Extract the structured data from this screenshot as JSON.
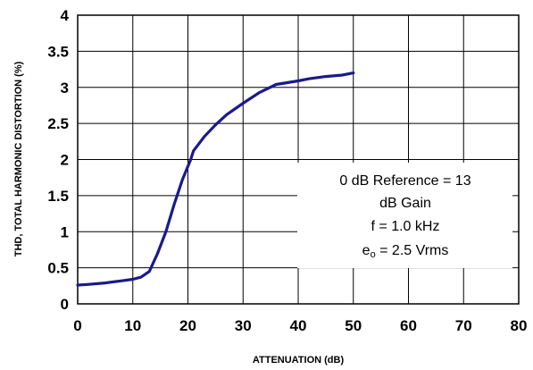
{
  "chart_data": {
    "type": "line",
    "xlabel": "ATTENUATION (dB)",
    "ylabel": "THD, TOTAL HARMONIC DISTORTION (%)",
    "xlim": [
      0,
      80
    ],
    "ylim": [
      0,
      4
    ],
    "x_ticks": [
      "0",
      "10",
      "20",
      "30",
      "40",
      "50",
      "60",
      "70",
      "80"
    ],
    "y_ticks": [
      "0",
      "0.5",
      "1",
      "1.5",
      "2",
      "2.5",
      "3",
      "3.5",
      "4"
    ],
    "grid": true,
    "line_color": "#1a1a8c",
    "series": [
      {
        "x": [
          0,
          2,
          5,
          8,
          10,
          11.5,
          13,
          14.5,
          16,
          17.5,
          19,
          20.5,
          21,
          23,
          25,
          27,
          30,
          33,
          36,
          40,
          42,
          45,
          48,
          50
        ],
        "y": [
          0.26,
          0.27,
          0.29,
          0.32,
          0.34,
          0.37,
          0.45,
          0.7,
          1.0,
          1.38,
          1.72,
          2.0,
          2.12,
          2.32,
          2.48,
          2.62,
          2.78,
          2.93,
          3.04,
          3.09,
          3.12,
          3.15,
          3.17,
          3.2
        ]
      }
    ],
    "annotation": {
      "lines": [
        "0 dB Reference = 13",
        "dB Gain",
        "f = 1.0 kHz",
        "e"
      ],
      "eo_subscript": "o",
      "eo_value": " = 2.5 Vrms"
    }
  }
}
